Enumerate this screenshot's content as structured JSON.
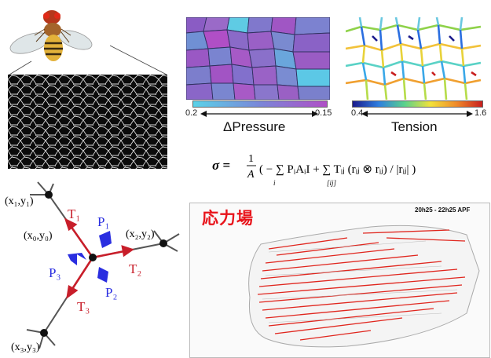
{
  "pressure_panel": {
    "colorbar": {
      "min_label": "0.2",
      "max_label": "0.15",
      "colors": [
        "#5ad2e8",
        "#7a86d8",
        "#b04fc6"
      ]
    },
    "title": "ΔPressure"
  },
  "tension_panel": {
    "colorbar": {
      "min_label": "0.4",
      "max_label": "1.6",
      "colors": [
        "#1a1a8c",
        "#2f7fe0",
        "#5ad28c",
        "#f2e23a",
        "#f08a2a",
        "#c81e1e"
      ]
    },
    "title": "Tension"
  },
  "formula": {
    "lhs": "σ = ",
    "frac_num": "1",
    "frac_den": "A",
    "body": "( − ∑ PᵢAᵢI + ∑ Tᵢⱼ (rᵢⱼ ⊗ rᵢⱼ) / |rᵢⱼ| )",
    "sub_i": "i",
    "sub_ij": "[ij]"
  },
  "vertex_diagram": {
    "points": {
      "p1": "(x₁,y₁)",
      "p0": "(x₀,y₀)",
      "p2": "(x₂,y₂)",
      "p3": "(x₃,y₃)"
    },
    "tensions": {
      "t1": "T₁",
      "t2": "T₂",
      "t3": "T₃"
    },
    "pressures": {
      "p1": "P₁",
      "p2": "P₂",
      "p3": "P₃"
    },
    "tension_color": "#c81e2a",
    "pressure_color": "#2a2ee0"
  },
  "stress_field": {
    "title": "応力場",
    "time_label": "20h25 - 22h25 APF",
    "arrow_color": "#e0261e"
  }
}
